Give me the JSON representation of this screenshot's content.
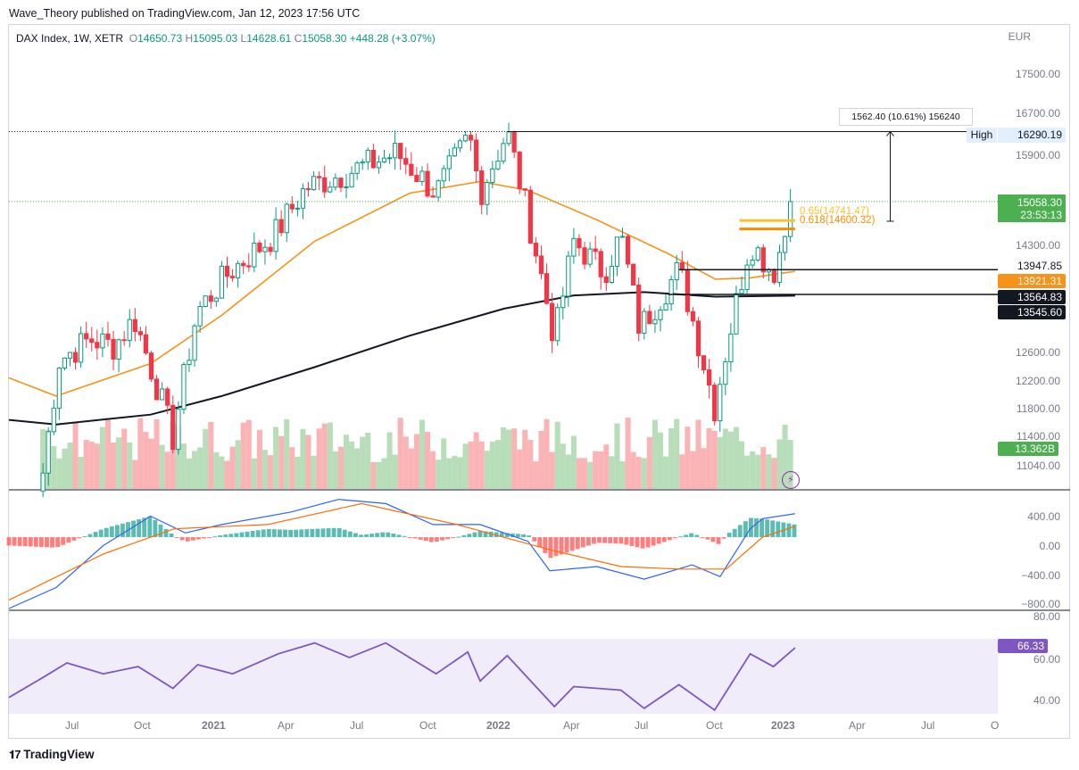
{
  "header": {
    "publisher": "Wave_Theory published on TradingView.com, Jan 12, 2023 17:56 UTC"
  },
  "legend": {
    "symbol": "DAX Index, 1W, XETR",
    "o_label": "O",
    "o": "14650.73",
    "h_label": "H",
    "h": "15095.03",
    "l_label": "L",
    "l": "14628.61",
    "c_label": "C",
    "c": "15058.30",
    "change": "+448.28 (+3.07%)"
  },
  "price_axis": {
    "currency": "EUR",
    "ticks": [
      "17500.00",
      "16700.00",
      "15900.00",
      "14300.00",
      "12600.00",
      "12200.00",
      "11800.00",
      "11400.00",
      "11040.00"
    ]
  },
  "tags": {
    "high_label": "High",
    "high_value": "16290.19",
    "last_price": "15058.30",
    "countdown": "23:53:13",
    "level_1": "13947.85",
    "ema_value": "13921.31",
    "level_2": "13564.83",
    "sma_value": "13545.60",
    "volume": "13.362B"
  },
  "annotations": {
    "measure": "1562.40 (10.61%) 156240",
    "fib_065": "0.65(14741.47)",
    "fib_0618": "0.618(14600.32)"
  },
  "macd_axis": {
    "ticks": [
      "400.00",
      "0.00",
      "−400.00",
      "−800.00"
    ]
  },
  "rsi_axis": {
    "ticks": [
      "80.00",
      "60.00",
      "40.00"
    ],
    "value": "66.33"
  },
  "time_axis": [
    "Jul",
    "Oct",
    "2021",
    "Apr",
    "Jul",
    "Oct",
    "2022",
    "Apr",
    "Jul",
    "Oct",
    "2023",
    "Apr",
    "Jul",
    "O"
  ],
  "branding": {
    "logo_text": "TradingView"
  },
  "colors": {
    "up": "#089981",
    "up_body": "#26a69a",
    "down": "#f23645",
    "ema": "#f7931a",
    "sma": "#131722",
    "rsi": "#7e57c2",
    "macd": "#2962ff",
    "signal": "#ff6d00",
    "fib": "#fbc02d",
    "vol_up": "#a5d6a7",
    "vol_down": "#faa1a4",
    "volume_tag": "#4caf50"
  },
  "chart_data": {
    "type": "candlestick",
    "title": "DAX Index, 1W, XETR",
    "interval": "1W",
    "x_range": [
      "2020-04",
      "2023-10"
    ],
    "y_range": [
      10900,
      18000
    ],
    "scale": "log",
    "anchors": [
      {
        "date": "2020-05-15",
        "price": 11100
      },
      {
        "date": "2020-06-05",
        "price": 12600
      },
      {
        "date": "2020-07-15",
        "price": 12900
      },
      {
        "date": "2020-08-15",
        "price": 12800
      },
      {
        "date": "2020-09-10",
        "price": 13200
      },
      {
        "date": "2020-10-30",
        "price": 11550
      },
      {
        "date": "2020-11-30",
        "price": 13300
      },
      {
        "date": "2021-01-10",
        "price": 13900
      },
      {
        "date": "2021-03-10",
        "price": 14500
      },
      {
        "date": "2021-04-20",
        "price": 15300
      },
      {
        "date": "2021-06-20",
        "price": 15600
      },
      {
        "date": "2021-08-15",
        "price": 15900
      },
      {
        "date": "2021-10-05",
        "price": 15200
      },
      {
        "date": "2021-11-17",
        "price": 16200
      },
      {
        "date": "2021-12-01",
        "price": 15200
      },
      {
        "date": "2022-01-05",
        "price": 16290
      },
      {
        "date": "2022-03-07",
        "price": 12900
      },
      {
        "date": "2022-04-01",
        "price": 14400
      },
      {
        "date": "2022-05-10",
        "price": 13900
      },
      {
        "date": "2022-06-01",
        "price": 14500
      },
      {
        "date": "2022-06-25",
        "price": 13050
      },
      {
        "date": "2022-08-15",
        "price": 13950
      },
      {
        "date": "2022-09-30",
        "price": 11950
      },
      {
        "date": "2022-11-15",
        "price": 14400
      },
      {
        "date": "2022-12-15",
        "price": 13900
      },
      {
        "date": "2023-01-12",
        "price": 15058
      }
    ],
    "ema": {
      "label": "13921.31",
      "points": [
        {
          "date": "2020-04-01",
          "price": 12350
        },
        {
          "date": "2020-06-01",
          "price": 12100
        },
        {
          "date": "2020-10-01",
          "price": 12550
        },
        {
          "date": "2021-01-01",
          "price": 13250
        },
        {
          "date": "2021-05-01",
          "price": 14400
        },
        {
          "date": "2021-09-01",
          "price": 15200
        },
        {
          "date": "2021-12-01",
          "price": 15400
        },
        {
          "date": "2022-02-01",
          "price": 15250
        },
        {
          "date": "2022-05-01",
          "price": 14750
        },
        {
          "date": "2022-08-01",
          "price": 14200
        },
        {
          "date": "2022-10-01",
          "price": 13800
        },
        {
          "date": "2022-11-15",
          "price": 13820
        },
        {
          "date": "2023-01-12",
          "price": 13921
        }
      ]
    },
    "sma": {
      "label": "13545.60",
      "points": [
        {
          "date": "2020-04-01",
          "price": 11780
        },
        {
          "date": "2020-06-01",
          "price": 11720
        },
        {
          "date": "2020-10-01",
          "price": 11850
        },
        {
          "date": "2021-01-01",
          "price": 12100
        },
        {
          "date": "2021-05-01",
          "price": 12500
        },
        {
          "date": "2021-09-01",
          "price": 12950
        },
        {
          "date": "2022-01-01",
          "price": 13350
        },
        {
          "date": "2022-04-01",
          "price": 13550
        },
        {
          "date": "2022-07-01",
          "price": 13600
        },
        {
          "date": "2022-10-01",
          "price": 13530
        },
        {
          "date": "2023-01-12",
          "price": 13545
        }
      ]
    },
    "levels": [
      {
        "name": "High",
        "price": 16290.19
      },
      {
        "name": "level_1",
        "price": 13947.85
      },
      {
        "name": "level_2",
        "price": 13564.83
      }
    ],
    "fibonacci": [
      {
        "ratio": 0.65,
        "price": 14741.47
      },
      {
        "ratio": 0.618,
        "price": 14600.32
      }
    ],
    "measure": {
      "from": 14728,
      "to": 16290.19,
      "diff": 1562.4,
      "pct": 10.61,
      "ticks": 156240
    },
    "macd": {
      "axis_range": [
        -850,
        500
      ],
      "macd_points": [
        {
          "date": "2020-04-01",
          "value": -850
        },
        {
          "date": "2020-06-01",
          "value": -600
        },
        {
          "date": "2020-08-01",
          "value": -100
        },
        {
          "date": "2020-10-01",
          "value": 250
        },
        {
          "date": "2020-11-15",
          "value": 50
        },
        {
          "date": "2021-01-01",
          "value": 150
        },
        {
          "date": "2021-04-01",
          "value": 300
        },
        {
          "date": "2021-06-01",
          "value": 450
        },
        {
          "date": "2021-08-01",
          "value": 400
        },
        {
          "date": "2021-10-01",
          "value": 150
        },
        {
          "date": "2021-12-01",
          "value": 150
        },
        {
          "date": "2022-02-01",
          "value": -50
        },
        {
          "date": "2022-03-01",
          "value": -400
        },
        {
          "date": "2022-05-01",
          "value": -350
        },
        {
          "date": "2022-07-01",
          "value": -500
        },
        {
          "date": "2022-09-01",
          "value": -330
        },
        {
          "date": "2022-10-07",
          "value": -470
        },
        {
          "date": "2022-11-15",
          "value": 100
        },
        {
          "date": "2022-12-01",
          "value": 220
        },
        {
          "date": "2023-01-12",
          "value": 280
        }
      ],
      "signal_points": [
        {
          "date": "2020-04-01",
          "value": -750
        },
        {
          "date": "2020-08-01",
          "value": -200
        },
        {
          "date": "2020-11-01",
          "value": 100
        },
        {
          "date": "2021-03-01",
          "value": 150
        },
        {
          "date": "2021-07-01",
          "value": 400
        },
        {
          "date": "2021-11-01",
          "value": 150
        },
        {
          "date": "2022-03-01",
          "value": -150
        },
        {
          "date": "2022-06-01",
          "value": -350
        },
        {
          "date": "2022-08-15",
          "value": -380
        },
        {
          "date": "2022-10-15",
          "value": -380
        },
        {
          "date": "2022-12-01",
          "value": 0
        },
        {
          "date": "2023-01-12",
          "value": 130
        }
      ]
    },
    "rsi": {
      "value": 66.33,
      "axis_range": [
        30,
        85
      ],
      "points": [
        {
          "date": "2020-04-01",
          "value": 39
        },
        {
          "date": "2020-05-15",
          "value": 50
        },
        {
          "date": "2020-06-15",
          "value": 58
        },
        {
          "date": "2020-08-01",
          "value": 52
        },
        {
          "date": "2020-09-15",
          "value": 56
        },
        {
          "date": "2020-10-30",
          "value": 44
        },
        {
          "date": "2020-12-01",
          "value": 57
        },
        {
          "date": "2021-01-15",
          "value": 52
        },
        {
          "date": "2021-03-15",
          "value": 63
        },
        {
          "date": "2021-05-01",
          "value": 69
        },
        {
          "date": "2021-06-15",
          "value": 61
        },
        {
          "date": "2021-08-01",
          "value": 69
        },
        {
          "date": "2021-10-05",
          "value": 52
        },
        {
          "date": "2021-11-15",
          "value": 64
        },
        {
          "date": "2021-12-01",
          "value": 48
        },
        {
          "date": "2022-01-05",
          "value": 62
        },
        {
          "date": "2022-03-07",
          "value": 34
        },
        {
          "date": "2022-04-01",
          "value": 45
        },
        {
          "date": "2022-06-01",
          "value": 43
        },
        {
          "date": "2022-07-01",
          "value": 33
        },
        {
          "date": "2022-08-15",
          "value": 46
        },
        {
          "date": "2022-09-30",
          "value": 32
        },
        {
          "date": "2022-11-15",
          "value": 63
        },
        {
          "date": "2022-12-15",
          "value": 56
        },
        {
          "date": "2023-01-12",
          "value": 66.33
        }
      ]
    }
  }
}
